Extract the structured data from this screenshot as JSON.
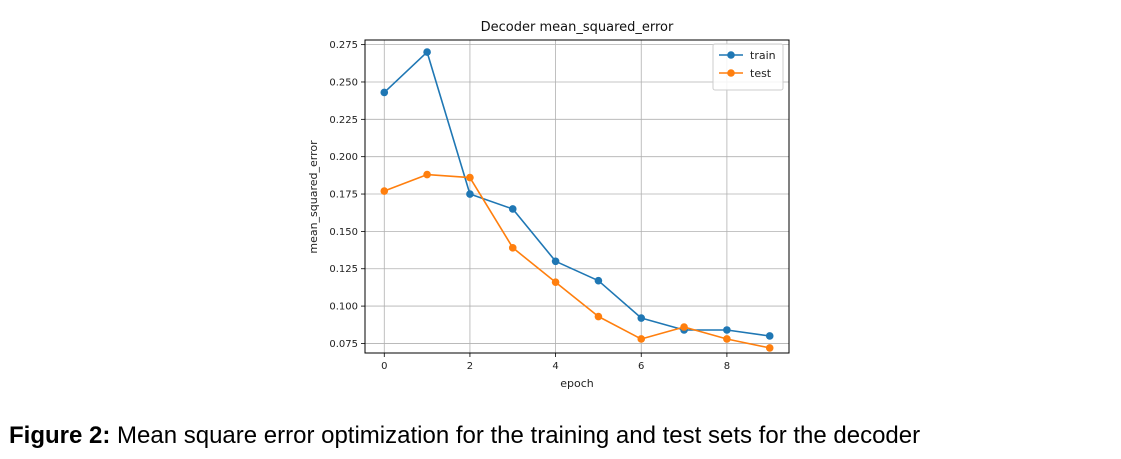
{
  "chart_data": {
    "type": "line",
    "title": "Decoder mean_squared_error",
    "xlabel": "epoch",
    "ylabel": "mean_squared_error",
    "x": [
      0,
      1,
      2,
      3,
      4,
      5,
      6,
      7,
      8,
      9
    ],
    "xlim": [
      -0.45,
      9.45
    ],
    "ylim": [
      0.0686,
      0.2781
    ],
    "xticks": [
      "0",
      "2",
      "4",
      "6",
      "8"
    ],
    "xtick_values": [
      0,
      2,
      4,
      6,
      8
    ],
    "yticks": [
      "0.075",
      "0.100",
      "0.125",
      "0.150",
      "0.175",
      "0.200",
      "0.225",
      "0.250",
      "0.275"
    ],
    "ytick_values": [
      0.075,
      0.1,
      0.125,
      0.15,
      0.175,
      0.2,
      0.225,
      0.25,
      0.275
    ],
    "grid": true,
    "legend_position": "top-right",
    "series": [
      {
        "name": "train",
        "color": "#1f77b4",
        "values": [
          0.243,
          0.27,
          0.175,
          0.165,
          0.13,
          0.117,
          0.092,
          0.084,
          0.084,
          0.08
        ]
      },
      {
        "name": "test",
        "color": "#ff7f0e",
        "values": [
          0.177,
          0.188,
          0.186,
          0.139,
          0.116,
          0.093,
          0.078,
          0.086,
          0.078,
          0.072
        ]
      }
    ]
  },
  "caption": {
    "label": "Figure 2:",
    "text": " Mean square error optimization for the training and test sets for the decoder"
  }
}
